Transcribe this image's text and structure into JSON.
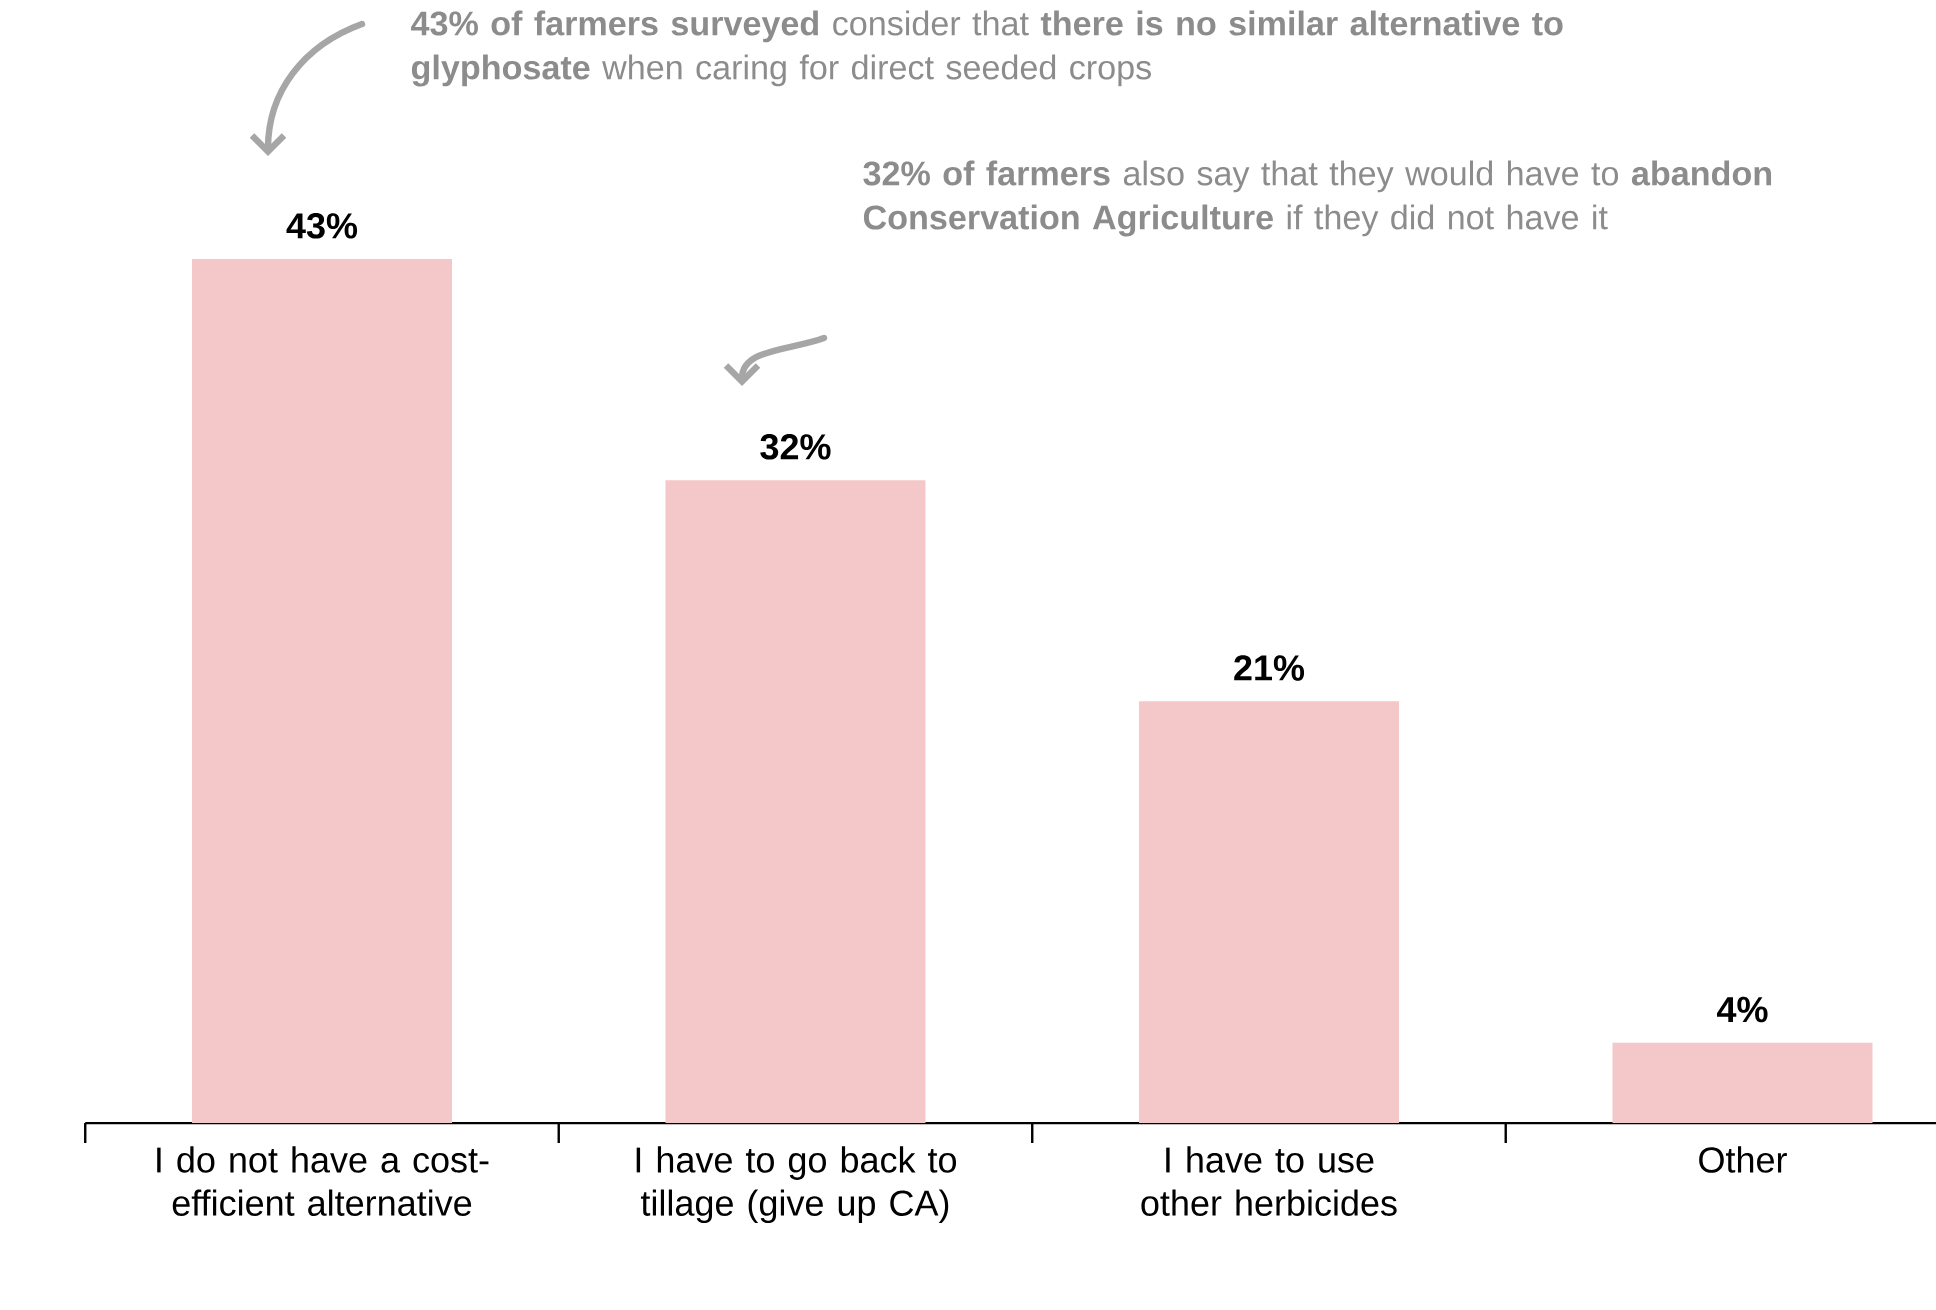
{
  "chart_data": {
    "type": "bar",
    "categories": [
      "I do not have a cost-efficient alternative",
      "I have to go back to tillage (give up CA)",
      "I have to use other herbicides",
      "Other"
    ],
    "values": [
      43,
      32,
      21,
      4
    ],
    "value_labels": [
      "43%",
      "32%",
      "21%",
      "4%"
    ],
    "color": "#f4c7c8",
    "annotations": [
      "**43% of farmers surveyed** consider that **there is no similar alternative to glyphosate** when caring for direct seeded crops",
      "**32% of farmers** also say that they would have to **abandon Conservation Agriculture** if they did not have it"
    ]
  }
}
